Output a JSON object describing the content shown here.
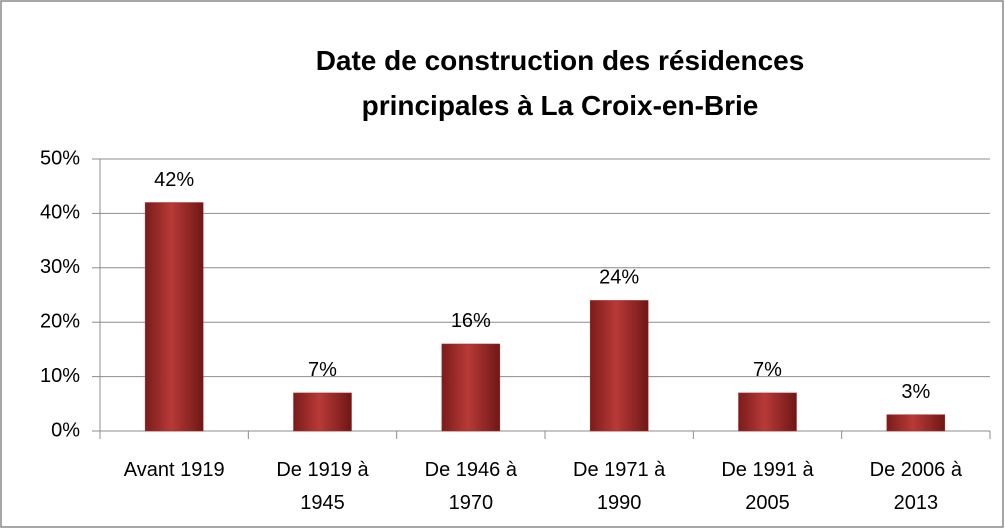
{
  "chart_data": {
    "type": "bar",
    "title": "Date de construction des résidences principales à La Croix-en-Brie",
    "categories": [
      "Avant 1919",
      "De 1919 à 1945",
      "De 1946 à 1970",
      "De 1971 à 1990",
      "De 1991 à 2005",
      "De 2006 à 2013"
    ],
    "values": [
      42,
      7,
      16,
      24,
      7,
      3
    ],
    "value_labels": [
      "42%",
      "7%",
      "16%",
      "24%",
      "7%",
      "3%"
    ],
    "color": "#a52a2a",
    "ylim": [
      0,
      50
    ],
    "yticks": [
      {
        "value": 0,
        "label": "0%"
      },
      {
        "value": 10,
        "label": "10%"
      },
      {
        "value": 20,
        "label": "20%"
      },
      {
        "value": 30,
        "label": "30%"
      },
      {
        "value": 40,
        "label": "40%"
      },
      {
        "value": 50,
        "label": "50%"
      }
    ],
    "grid": true
  }
}
